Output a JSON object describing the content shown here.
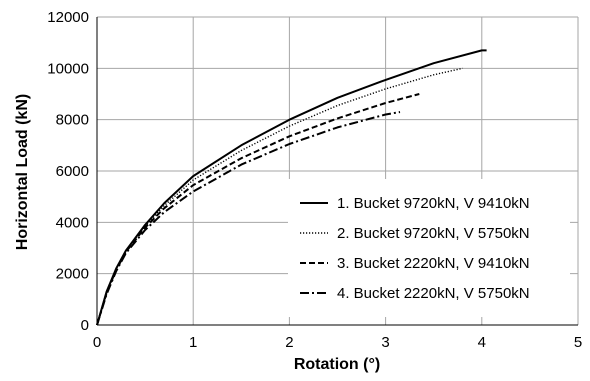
{
  "chart_data": {
    "type": "line",
    "title": "",
    "xlabel": "Rotation (°)",
    "ylabel": "Horizontal Load (kN)",
    "xlim": [
      0,
      5
    ],
    "ylim": [
      0,
      12000
    ],
    "x_ticks": [
      "0",
      "1",
      "2",
      "3",
      "4",
      "5"
    ],
    "y_ticks": [
      "0",
      "2000",
      "4000",
      "6000",
      "8000",
      "10000",
      "12000"
    ],
    "grid": true,
    "legend_position": "bottom-right",
    "series": [
      {
        "name": "1. Bucket 9720kN, V 9410kN",
        "style": "solid",
        "color": "#000000",
        "x": [
          0,
          0.1,
          0.2,
          0.3,
          0.5,
          0.7,
          1.0,
          1.5,
          2.0,
          2.5,
          3.0,
          3.5,
          4.0,
          4.05
        ],
        "y": [
          0,
          1300,
          2200,
          2900,
          3900,
          4750,
          5800,
          7000,
          8000,
          8850,
          9550,
          10200,
          10700,
          10700
        ]
      },
      {
        "name": "2. Bucket 9720kN, V 5750kN",
        "style": "dotted",
        "color": "#000000",
        "x": [
          0,
          0.1,
          0.2,
          0.3,
          0.5,
          0.7,
          1.0,
          1.5,
          2.0,
          2.5,
          3.0,
          3.5,
          3.8
        ],
        "y": [
          0,
          1300,
          2200,
          2900,
          3850,
          4650,
          5650,
          6800,
          7750,
          8550,
          9200,
          9750,
          10000
        ]
      },
      {
        "name": "3. Bucket 2220kN, V 9410kN",
        "style": "dashed",
        "color": "#000000",
        "x": [
          0,
          0.1,
          0.2,
          0.3,
          0.5,
          0.7,
          1.0,
          1.5,
          2.0,
          2.5,
          3.0,
          3.35
        ],
        "y": [
          0,
          1250,
          2150,
          2850,
          3800,
          4550,
          5450,
          6500,
          7350,
          8050,
          8650,
          9000
        ]
      },
      {
        "name": "4. Bucket 2220kN, V 5750kN",
        "style": "dashdot",
        "color": "#000000",
        "x": [
          0,
          0.1,
          0.2,
          0.3,
          0.5,
          0.7,
          1.0,
          1.5,
          2.0,
          2.5,
          3.0,
          3.15
        ],
        "y": [
          0,
          1200,
          2100,
          2800,
          3700,
          4400,
          5200,
          6250,
          7050,
          7700,
          8200,
          8300
        ]
      }
    ]
  }
}
